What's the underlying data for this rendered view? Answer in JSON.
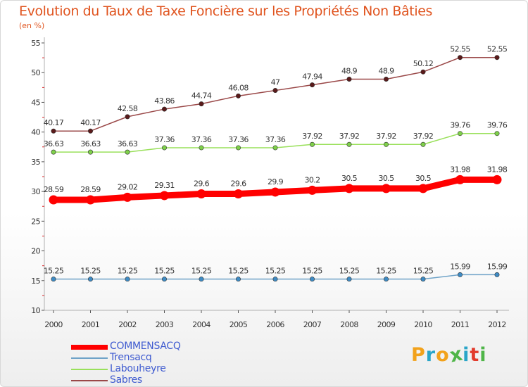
{
  "title": "Evolution du Taux de Taxe Foncière sur les Propriétés Non Bâties",
  "unit_label": "(en %)",
  "logo": {
    "text": "Proxiti",
    "colors": [
      "#f2a21b",
      "#2aa5c8",
      "#f2a21b",
      "#4fb548",
      "#2aa5c8",
      "#e23b2c",
      "#4fb548"
    ]
  },
  "chart_data": {
    "type": "line",
    "title": "Evolution du Taux de Taxe Foncière sur les Propriétés Non Bâties",
    "ylabel": "(en %)",
    "xlabel": "",
    "ylim": [
      10,
      55
    ],
    "yticks": [
      10,
      15,
      20,
      25,
      30,
      35,
      40,
      45,
      50,
      55
    ],
    "grid": false,
    "legend_position": "bottom-left",
    "categories": [
      "2000",
      "2001",
      "2002",
      "2003",
      "2004",
      "2005",
      "2006",
      "2007",
      "2008",
      "2009",
      "2010",
      "2011",
      "2012"
    ],
    "series": [
      {
        "name": "COMMENSACQ",
        "color": "#ff0000",
        "emphasis": true,
        "values": [
          28.59,
          28.59,
          29.02,
          29.31,
          29.6,
          29.6,
          29.9,
          30.2,
          30.5,
          30.5,
          30.5,
          31.98,
          31.98
        ],
        "labels": [
          "28.59",
          "28.59",
          "29.02",
          "29.31",
          "29.6",
          "29.6",
          "29.9",
          "30.2",
          "30.5",
          "30.5",
          "30.5",
          "31.98",
          "31.98"
        ]
      },
      {
        "name": "Trensacq",
        "color": "#6fa3c8",
        "marker_color": "#3e8bc4",
        "values": [
          15.25,
          15.25,
          15.25,
          15.25,
          15.25,
          15.25,
          15.25,
          15.25,
          15.25,
          15.25,
          15.25,
          15.99,
          15.99
        ],
        "labels": [
          "15.25",
          "15.25",
          "15.25",
          "15.25",
          "15.25",
          "15.25",
          "15.25",
          "15.25",
          "15.25",
          "15.25",
          "15.25",
          "15.99",
          "15.99"
        ]
      },
      {
        "name": "Labouheyre",
        "color": "#99e05a",
        "marker_color": "#7ed04a",
        "values": [
          36.63,
          36.63,
          36.63,
          37.36,
          37.36,
          37.36,
          37.36,
          37.92,
          37.92,
          37.92,
          37.92,
          39.76,
          39.76
        ],
        "labels": [
          "36.63",
          "36.63",
          "36.63",
          "37.36",
          "37.36",
          "37.36",
          "37.36",
          "37.92",
          "37.92",
          "37.92",
          "37.92",
          "39.76",
          "39.76"
        ]
      },
      {
        "name": "Sabres",
        "color": "#9a4848",
        "marker_color": "#5a1a1a",
        "values": [
          40.17,
          40.17,
          42.58,
          43.86,
          44.74,
          46.08,
          47,
          47.94,
          48.9,
          48.9,
          50.12,
          52.55,
          52.55
        ],
        "labels": [
          "40.17",
          "40.17",
          "42.58",
          "43.86",
          "44.74",
          "46.08",
          "47",
          "47.94",
          "48.9",
          "48.9",
          "50.12",
          "52.55",
          "52.55"
        ]
      }
    ]
  }
}
